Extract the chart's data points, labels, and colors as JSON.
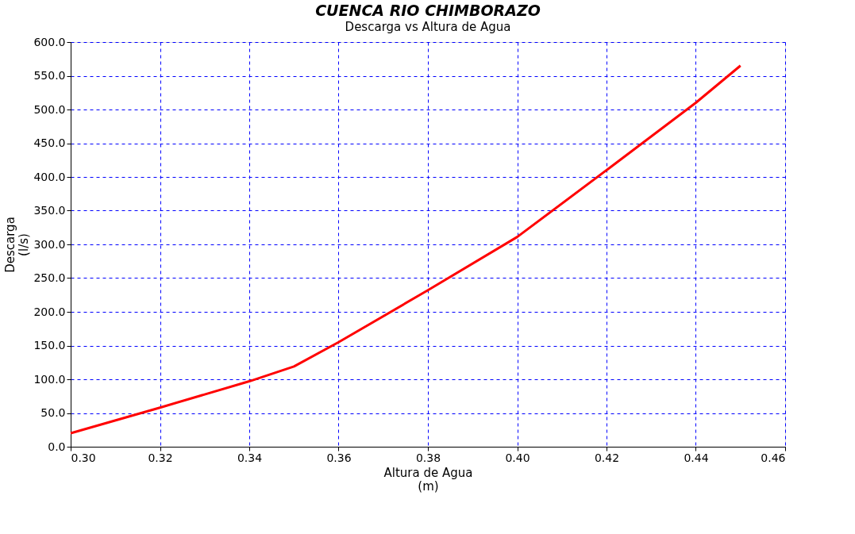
{
  "chart_data": {
    "type": "line",
    "title": "CUENCA RIO CHIMBORAZO",
    "subtitle": "Descarga vs Altura de Agua",
    "xlabel": "Altura de Agua\n(m)",
    "ylabel": "Descarga\n(l/s)",
    "x": [
      0.3,
      0.32,
      0.34,
      0.35,
      0.36,
      0.38,
      0.4,
      0.42,
      0.44,
      0.45
    ],
    "series": [
      {
        "color": "#ff0000",
        "values": [
          20,
          58,
          97,
          119,
          155,
          232,
          311,
          410,
          510,
          565
        ]
      }
    ],
    "xlim": [
      0.3,
      0.46
    ],
    "xticks": [
      {
        "value": 0.3,
        "label": "0.30"
      },
      {
        "value": 0.32,
        "label": "0.32"
      },
      {
        "value": 0.34,
        "label": "0.34"
      },
      {
        "value": 0.36,
        "label": "0.36"
      },
      {
        "value": 0.38,
        "label": "0.38"
      },
      {
        "value": 0.4,
        "label": "0.40"
      },
      {
        "value": 0.42,
        "label": "0.42"
      },
      {
        "value": 0.44,
        "label": "0.44"
      },
      {
        "value": 0.46,
        "label": "0.46"
      }
    ],
    "ylim": [
      0,
      600
    ],
    "yticks": [
      {
        "value": 0,
        "label": "0.0"
      },
      {
        "value": 50,
        "label": "50.0"
      },
      {
        "value": 100,
        "label": "100.0"
      },
      {
        "value": 150,
        "label": "150.0"
      },
      {
        "value": 200,
        "label": "200.0"
      },
      {
        "value": 250,
        "label": "250.0"
      },
      {
        "value": 300,
        "label": "300.0"
      },
      {
        "value": 350,
        "label": "350.0"
      },
      {
        "value": 400,
        "label": "400.0"
      },
      {
        "value": 450,
        "label": "450.0"
      },
      {
        "value": 500,
        "label": "500.0"
      },
      {
        "value": 550,
        "label": "550.0"
      },
      {
        "value": 600,
        "label": "600.0"
      }
    ],
    "grid": true,
    "line_style": "solid",
    "marker": "none"
  }
}
